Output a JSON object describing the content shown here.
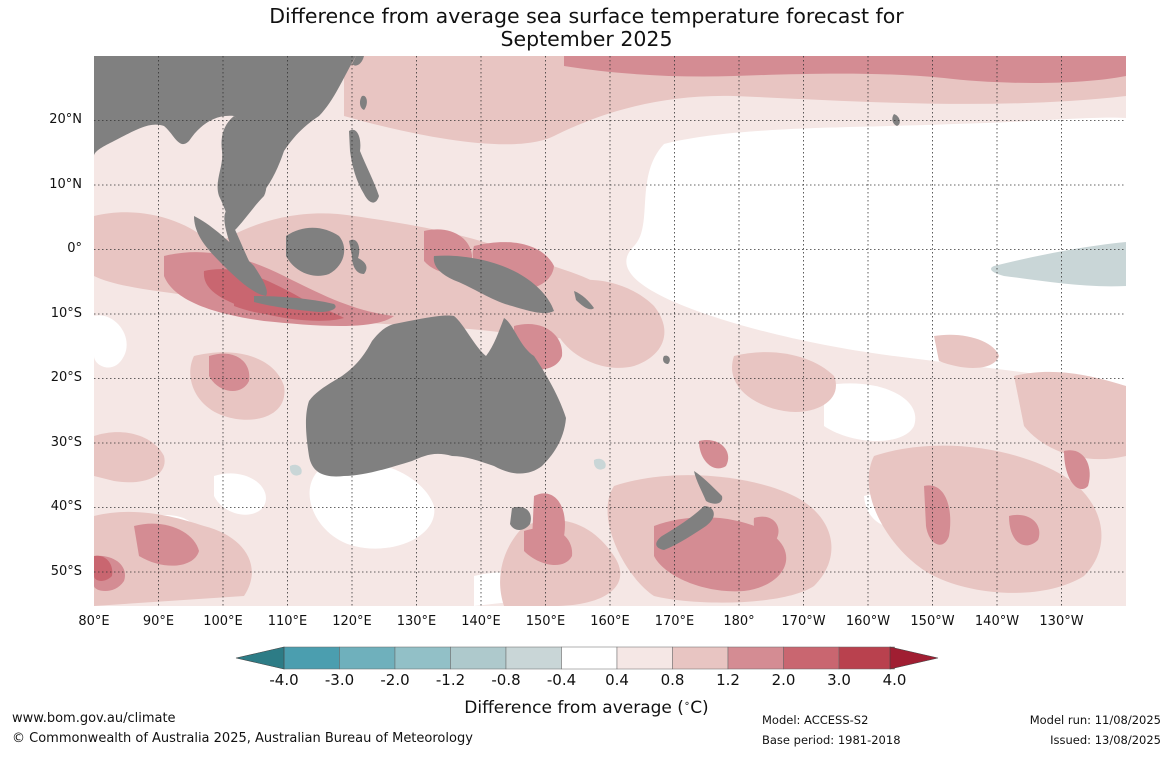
{
  "title_line1": "Difference from average sea surface temperature forecast for",
  "title_line2": "September 2025",
  "lat_labels": [
    "20°N",
    "10°N",
    "0°",
    "10°S",
    "20°S",
    "30°S",
    "40°S",
    "50°S"
  ],
  "lon_labels": [
    "80°E",
    "90°E",
    "100°E",
    "110°E",
    "120°E",
    "130°E",
    "140°E",
    "150°E",
    "160°E",
    "170°E",
    "180°",
    "170°W",
    "160°W",
    "150°W",
    "140°W",
    "130°W"
  ],
  "colorbar": {
    "ticks": [
      "-4.0",
      "-3.0",
      "-2.0",
      "-1.2",
      "-0.8",
      "-0.4",
      "0.4",
      "0.8",
      "1.2",
      "2.0",
      "3.0",
      "4.0"
    ],
    "colors": [
      "#4b9eaf",
      "#6fb0bc",
      "#92c0c7",
      "#aec9cc",
      "#c9d6d7",
      "#ffffff",
      "#f5e7e5",
      "#e8c5c2",
      "#d48c93",
      "#c96670",
      "#b9414e"
    ],
    "under_color": "#2d7c86",
    "over_color": "#a01e32",
    "label_main": "Difference from average (",
    "label_deg": "∘",
    "label_unit": "C)"
  },
  "map_colors": {
    "land": "#808080",
    "ocean_neutral": "#ffffff",
    "anom_0_4": "#f5e7e5",
    "anom_0_8": "#e8c5c2",
    "anom_1_2": "#d48c93",
    "anom_2_0": "#c96670",
    "anom_neg": "#c9d6d7"
  },
  "footer": {
    "url": "www.bom.gov.au/climate",
    "copyright": "© Commonwealth of Australia 2025, Australian Bureau of Meteorology",
    "model": "Model: ACCESS-S2",
    "base_period": "Base period: 1981-2018",
    "model_run": "Model run: 11/08/2025",
    "issued": "Issued: 13/08/2025"
  }
}
